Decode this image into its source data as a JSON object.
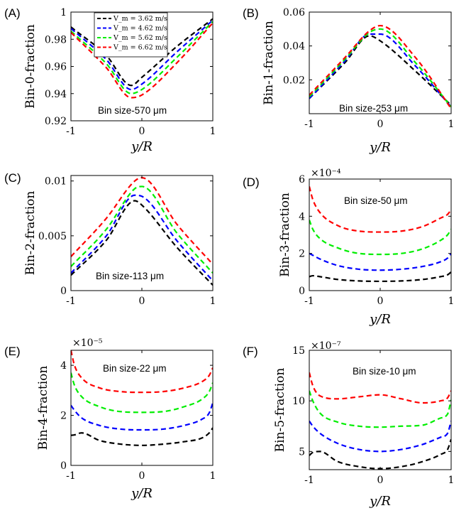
{
  "chart_data": [
    {
      "panel": "(A)",
      "type": "line",
      "ylabel": "Bin-0-fraction",
      "xlabel": "y/R",
      "annotation": "Bin size-570 μm",
      "multiplier": "",
      "xlim": [
        -1,
        1
      ],
      "ylim": [
        0.92,
        1.0
      ],
      "xticks": [
        -1,
        0,
        1
      ],
      "xtick_labels": [
        "-1",
        "0",
        "1"
      ],
      "yticks": [
        0.92,
        0.94,
        0.96,
        0.98,
        1.0
      ],
      "ytick_labels": [
        "0.92",
        "0.94",
        "0.96",
        "0.98",
        "1"
      ],
      "legend": [
        "V_m = 3.62 m/s",
        "V_m = 4.62 m/s",
        "V_m = 5.62 m/s",
        "V_m = 6.62 m/s"
      ],
      "x": [
        -1,
        -0.5,
        -0.15,
        0,
        0.5,
        1
      ],
      "series": [
        {
          "name": "V_m = 3.62 m/s",
          "color": "#000000",
          "values": [
            0.989,
            0.968,
            0.946,
            0.952,
            0.975,
            0.995
          ]
        },
        {
          "name": "V_m = 4.62 m/s",
          "color": "#0000ff",
          "values": [
            0.988,
            0.965,
            0.943,
            0.947,
            0.971,
            0.994
          ]
        },
        {
          "name": "V_m = 5.62 m/s",
          "color": "#00ee00",
          "values": [
            0.986,
            0.962,
            0.94,
            0.943,
            0.967,
            0.993
          ]
        },
        {
          "name": "V_m = 6.62 m/s",
          "color": "#ff0000",
          "values": [
            0.985,
            0.959,
            0.937,
            0.939,
            0.963,
            0.992
          ]
        }
      ]
    },
    {
      "panel": "(B)",
      "type": "line",
      "ylabel": "Bin-1-fraction",
      "xlabel": "y/R",
      "annotation": "Bin size-253 μm",
      "multiplier": "",
      "xlim": [
        -1,
        1
      ],
      "ylim": [
        0,
        0.06
      ],
      "xticks": [
        -1,
        0,
        1
      ],
      "xtick_labels": [
        "-1",
        "0",
        "1"
      ],
      "yticks": [
        0,
        0.02,
        0.04,
        0.06
      ],
      "ytick_labels": [
        "",
        "0.02",
        "0.04",
        "0.06"
      ],
      "x": [
        -1,
        -0.5,
        -0.15,
        0,
        0.5,
        1
      ],
      "series": [
        {
          "name": "V_m = 3.62 m/s",
          "color": "#000000",
          "values": [
            0.009,
            0.03,
            0.046,
            0.043,
            0.025,
            0.005
          ]
        },
        {
          "name": "V_m = 4.62 m/s",
          "color": "#0000ff",
          "values": [
            0.009,
            0.031,
            0.047,
            0.047,
            0.028,
            0.004
          ]
        },
        {
          "name": "V_m = 5.62 m/s",
          "color": "#00ee00",
          "values": [
            0.01,
            0.032,
            0.048,
            0.05,
            0.03,
            0.004
          ]
        },
        {
          "name": "V_m = 6.62 m/s",
          "color": "#ff0000",
          "values": [
            0.011,
            0.033,
            0.049,
            0.052,
            0.033,
            0.003
          ]
        }
      ]
    },
    {
      "panel": "(C)",
      "type": "line",
      "ylabel": "Bin-2-fraction",
      "xlabel": "",
      "annotation": "Bin size-113 μm",
      "multiplier": "",
      "xlim": [
        -1,
        1
      ],
      "ylim": [
        0,
        0.0105
      ],
      "xticks": [
        -1,
        0,
        1
      ],
      "xtick_labels": [
        "-1",
        "0",
        "1"
      ],
      "yticks": [
        0,
        0.005,
        0.01
      ],
      "ytick_labels": [
        "0",
        "0.005",
        "0.01"
      ],
      "x": [
        -1,
        -0.5,
        -0.1,
        0,
        0.5,
        1
      ],
      "series": [
        {
          "name": "V_m = 3.62 m/s",
          "color": "#000000",
          "values": [
            0.0014,
            0.0046,
            0.0082,
            0.0078,
            0.0039,
            0.0005
          ]
        },
        {
          "name": "V_m = 4.62 m/s",
          "color": "#0000ff",
          "values": [
            0.0016,
            0.005,
            0.0087,
            0.0086,
            0.0045,
            0.0009
          ]
        },
        {
          "name": "V_m = 5.62 m/s",
          "color": "#00ee00",
          "values": [
            0.0022,
            0.0056,
            0.0093,
            0.0095,
            0.0052,
            0.0016
          ]
        },
        {
          "name": "V_m = 6.62 m/s",
          "color": "#ff0000",
          "values": [
            0.0031,
            0.0066,
            0.01,
            0.0103,
            0.006,
            0.0024
          ]
        }
      ]
    },
    {
      "panel": "(D)",
      "type": "line",
      "ylabel": "Bin-3-fraction",
      "xlabel": "y/R",
      "annotation": "Bin size-50 μm",
      "multiplier": "×10⁻⁴",
      "xlim": [
        -1,
        1
      ],
      "ylim": [
        0,
        6
      ],
      "xticks": [
        -1,
        0,
        1
      ],
      "xtick_labels": [
        "-1",
        "0",
        "1"
      ],
      "yticks": [
        0,
        2,
        4,
        6
      ],
      "ytick_labels": [
        "0",
        "2",
        "4",
        "6"
      ],
      "x": [
        -1,
        -0.95,
        -0.85,
        -0.6,
        -0.3,
        0,
        0.3,
        0.6,
        0.85,
        0.95,
        1
      ],
      "series": [
        {
          "name": "V_m = 3.62 m/s",
          "color": "#000000",
          "values": [
            0.75,
            0.8,
            0.75,
            0.6,
            0.52,
            0.5,
            0.52,
            0.6,
            0.75,
            0.85,
            1.0
          ]
        },
        {
          "name": "V_m = 4.62 m/s",
          "color": "#0000ff",
          "values": [
            2.0,
            1.9,
            1.7,
            1.35,
            1.15,
            1.1,
            1.15,
            1.3,
            1.55,
            1.75,
            2.0
          ]
        },
        {
          "name": "V_m = 5.62 m/s",
          "color": "#00ee00",
          "values": [
            3.8,
            3.3,
            2.8,
            2.3,
            2.0,
            1.95,
            2.0,
            2.25,
            2.7,
            3.0,
            3.3
          ]
        },
        {
          "name": "V_m = 6.62 m/s",
          "color": "#ff0000",
          "values": [
            5.6,
            4.9,
            4.2,
            3.5,
            3.2,
            3.15,
            3.2,
            3.45,
            3.9,
            4.1,
            4.35
          ]
        }
      ]
    },
    {
      "panel": "(E)",
      "type": "line",
      "ylabel": "Bin-4-fraction",
      "xlabel": "y/R",
      "annotation": "Bin size-22 μm",
      "multiplier": "×10⁻⁵",
      "xlim": [
        -1,
        1
      ],
      "ylim": [
        0,
        4.6
      ],
      "xticks": [
        -1,
        0,
        1
      ],
      "xtick_labels": [
        "-1",
        "0",
        "1"
      ],
      "yticks": [
        0,
        2,
        4
      ],
      "ytick_labels": [
        "0",
        "2",
        "4"
      ],
      "x": [
        -1,
        -0.95,
        -0.85,
        -0.6,
        -0.3,
        0,
        0.3,
        0.6,
        0.85,
        0.95,
        1
      ],
      "series": [
        {
          "name": "V_m = 3.62 m/s",
          "color": "#000000",
          "values": [
            1.2,
            1.22,
            1.3,
            1.0,
            0.85,
            0.8,
            0.85,
            0.95,
            1.1,
            1.3,
            1.5
          ]
        },
        {
          "name": "V_m = 4.62 m/s",
          "color": "#0000ff",
          "values": [
            2.4,
            2.2,
            1.9,
            1.6,
            1.45,
            1.42,
            1.45,
            1.6,
            1.85,
            2.1,
            2.5
          ]
        },
        {
          "name": "V_m = 5.62 m/s",
          "color": "#00ee00",
          "values": [
            3.7,
            3.2,
            2.75,
            2.35,
            2.15,
            2.12,
            2.15,
            2.35,
            2.65,
            2.95,
            3.3
          ]
        },
        {
          "name": "V_m = 6.62 m/s",
          "color": "#ff0000",
          "values": [
            4.6,
            4.0,
            3.5,
            3.1,
            2.95,
            2.92,
            2.95,
            3.1,
            3.35,
            3.6,
            3.9
          ]
        }
      ]
    },
    {
      "panel": "(F)",
      "type": "line",
      "ylabel": "Bin-5-fraction",
      "xlabel": "y/R",
      "annotation": "Bin size-10 μm",
      "multiplier": "×10⁻⁷",
      "xlim": [
        -1,
        1
      ],
      "ylim": [
        3.2,
        15
      ],
      "xticks": [
        -1,
        0,
        1
      ],
      "xtick_labels": [
        "-1",
        "0",
        "1"
      ],
      "yticks": [
        5,
        10,
        15
      ],
      "ytick_labels": [
        "5",
        "10",
        "15"
      ],
      "x": [
        -1,
        -0.95,
        -0.85,
        -0.6,
        -0.3,
        0,
        0.3,
        0.6,
        0.85,
        0.95,
        1
      ],
      "series": [
        {
          "name": "V_m = 3.62 m/s",
          "color": "#000000",
          "values": [
            4.6,
            4.9,
            5.0,
            4.0,
            3.5,
            3.3,
            3.5,
            4.0,
            4.7,
            5.2,
            6.2
          ]
        },
        {
          "name": "V_m = 4.62 m/s",
          "color": "#0000ff",
          "values": [
            8.0,
            7.5,
            6.8,
            5.8,
            5.2,
            5.0,
            5.2,
            5.7,
            6.4,
            6.8,
            8.0
          ]
        },
        {
          "name": "V_m = 5.62 m/s",
          "color": "#00ee00",
          "values": [
            11.0,
            10.0,
            8.8,
            7.9,
            7.5,
            7.4,
            7.5,
            7.6,
            8.3,
            8.7,
            10.1
          ]
        },
        {
          "name": "V_m = 6.62 m/s",
          "color": "#ff0000",
          "values": [
            12.8,
            11.5,
            10.5,
            10.2,
            10.4,
            10.6,
            10.2,
            9.8,
            10.0,
            10.3,
            11.0
          ]
        }
      ]
    }
  ]
}
